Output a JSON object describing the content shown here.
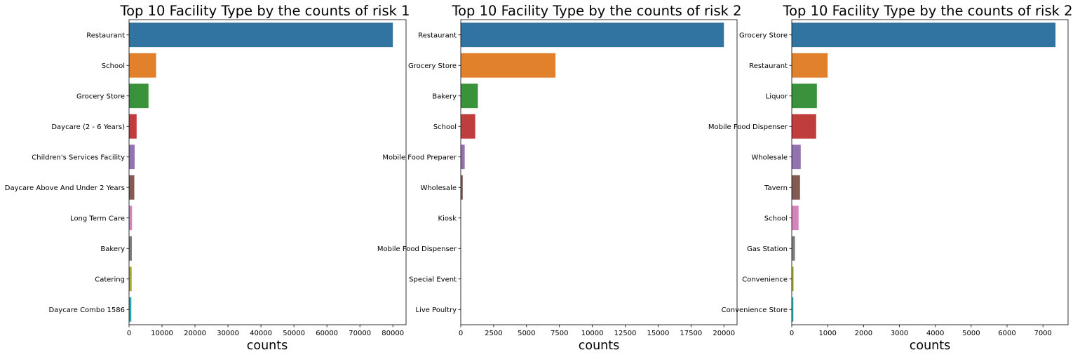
{
  "palette": [
    "#3274a1",
    "#e1812c",
    "#3a923a",
    "#c03d3e",
    "#9372b2",
    "#845b53",
    "#d684bd",
    "#7f7f7f",
    "#a9aa35",
    "#2eaab8"
  ],
  "chart_data": [
    {
      "type": "bar",
      "orientation": "horizontal",
      "title": "Top 10 Facility Type by the counts of risk 1",
      "xlabel": "counts",
      "ylabel": "",
      "categories": [
        "Restaurant",
        "School",
        "Grocery Store",
        "Daycare (2 - 6 Years)",
        "Children's Services Facility",
        "Daycare Above And Under 2 Years",
        "Long Term Care",
        "Bakery",
        "Catering",
        "Daycare Combo 1586"
      ],
      "values": [
        80000,
        8200,
        5900,
        2300,
        1700,
        1600,
        900,
        850,
        800,
        700
      ],
      "xlim": [
        0,
        84000
      ],
      "xticks": [
        0,
        10000,
        20000,
        30000,
        40000,
        50000,
        60000,
        70000,
        80000
      ],
      "grid": false
    },
    {
      "type": "bar",
      "orientation": "horizontal",
      "title": "Top 10 Facility Type by the counts of risk 2",
      "xlabel": "counts",
      "ylabel": "",
      "categories": [
        "Restaurant",
        "Grocery Store",
        "Bakery",
        "School",
        "Mobile Food Preparer",
        "Wholesale",
        "Kiosk",
        "Mobile Food Dispenser",
        "Special Event",
        "Live Poultry"
      ],
      "values": [
        20000,
        7200,
        1300,
        1100,
        300,
        150,
        20,
        15,
        10,
        8
      ],
      "xlim": [
        0,
        21000
      ],
      "xticks": [
        0,
        2500,
        5000,
        7500,
        10000,
        12500,
        15000,
        17500,
        20000
      ],
      "grid": false
    },
    {
      "type": "bar",
      "orientation": "horizontal",
      "title": "Top 10 Facility Type by the counts of risk 2",
      "xlabel": "counts",
      "ylabel": "",
      "categories": [
        "Grocery Store",
        "Restaurant",
        "Liquor",
        "Mobile Food Dispenser",
        "Wholesale",
        "Tavern",
        "School",
        "Gas Station",
        "Convenience",
        "Convenience Store"
      ],
      "values": [
        7350,
        1000,
        700,
        680,
        250,
        230,
        190,
        90,
        50,
        45
      ],
      "xlim": [
        0,
        7700
      ],
      "xticks": [
        0,
        1000,
        2000,
        3000,
        4000,
        5000,
        6000,
        7000
      ],
      "grid": false
    }
  ]
}
